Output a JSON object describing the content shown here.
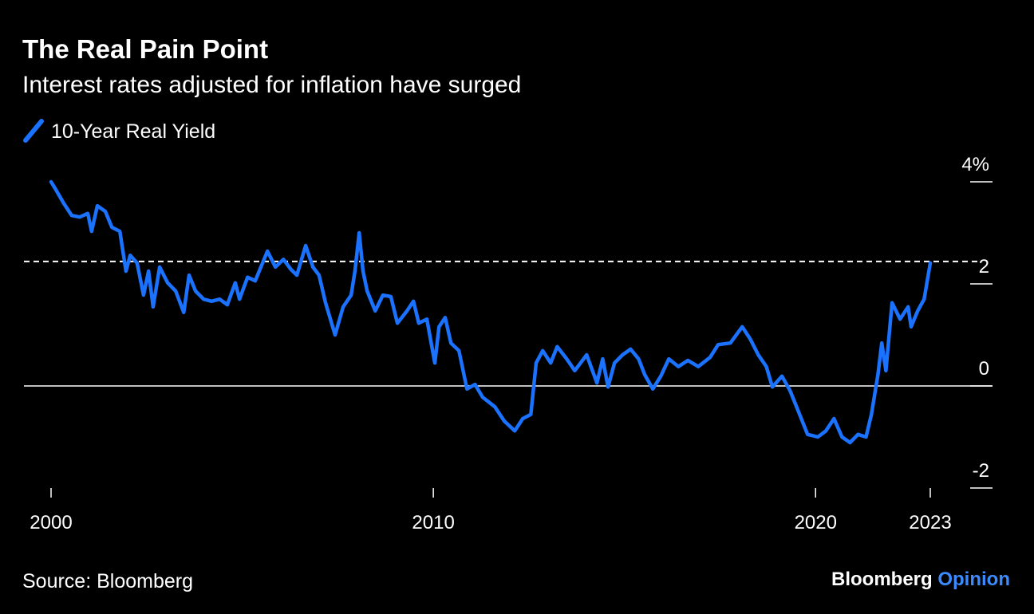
{
  "chart_data": {
    "type": "line",
    "title": "The Real Pain Point",
    "subtitle": "Interest rates adjusted for inflation have surged",
    "source": "Source: Bloomberg",
    "brand": "Bloomberg",
    "brand_section": "Opinion",
    "reference_line": 2.44,
    "xlim": [
      2000,
      2023
    ],
    "xticks": [
      2000,
      2010,
      2020,
      2023
    ],
    "ylim": [
      -2,
      4
    ],
    "yticks": [
      -2,
      0,
      2,
      {
        "value": 4,
        "label": "4%"
      }
    ],
    "series": [
      {
        "name": "10-Year Real Yield",
        "color": "#1a72ff",
        "x": [
          2000.0,
          2000.13,
          2000.33,
          2000.54,
          2000.75,
          2000.96,
          2001.06,
          2001.21,
          2001.42,
          2001.59,
          2001.8,
          2001.96,
          2002.07,
          2002.25,
          2002.42,
          2002.55,
          2002.67,
          2002.84,
          2003.05,
          2003.26,
          2003.47,
          2003.61,
          2003.78,
          2003.99,
          2004.2,
          2004.41,
          2004.61,
          2004.82,
          2004.93,
          2005.14,
          2005.34,
          2005.66,
          2005.87,
          2006.08,
          2006.28,
          2006.43,
          2006.66,
          2006.85,
          2007.01,
          2007.18,
          2007.43,
          2007.64,
          2007.85,
          2007.95,
          2008.06,
          2008.16,
          2008.27,
          2008.48,
          2008.68,
          2008.89,
          2009.06,
          2009.31,
          2009.48,
          2009.62,
          2009.83,
          2010.04,
          2010.15,
          2010.31,
          2010.46,
          2010.67,
          2010.88,
          2011.09,
          2011.29,
          2011.61,
          2011.86,
          2012.13,
          2012.34,
          2012.55,
          2012.69,
          2012.86,
          2013.07,
          2013.24,
          2013.49,
          2013.7,
          2014.01,
          2014.28,
          2014.43,
          2014.57,
          2014.74,
          2014.95,
          2015.16,
          2015.37,
          2015.53,
          2015.74,
          2015.95,
          2016.16,
          2016.41,
          2016.66,
          2016.93,
          2017.24,
          2017.45,
          2017.77,
          2018.08,
          2018.29,
          2018.5,
          2018.71,
          2018.87,
          2019.12,
          2019.33,
          2019.54,
          2019.79,
          2020.06,
          2020.27,
          2020.48,
          2020.69,
          2020.9,
          2021.11,
          2021.32,
          2021.46,
          2021.63,
          2021.73,
          2021.84,
          2022.0,
          2022.21,
          2022.42,
          2022.5,
          2022.67,
          2022.84,
          2023.0
        ],
        "values": [
          4.0,
          3.84,
          3.58,
          3.34,
          3.31,
          3.38,
          3.03,
          3.53,
          3.42,
          3.11,
          3.03,
          2.25,
          2.56,
          2.41,
          1.78,
          2.25,
          1.55,
          2.33,
          2.02,
          1.86,
          1.44,
          2.17,
          1.86,
          1.7,
          1.66,
          1.7,
          1.59,
          2.02,
          1.7,
          2.13,
          2.06,
          2.64,
          2.33,
          2.48,
          2.28,
          2.17,
          2.75,
          2.33,
          2.17,
          1.63,
          1.0,
          1.55,
          1.78,
          2.25,
          3.0,
          2.25,
          1.86,
          1.47,
          1.78,
          1.75,
          1.23,
          1.47,
          1.66,
          1.23,
          1.31,
          0.45,
          1.16,
          1.34,
          0.84,
          0.69,
          -0.06,
          0.03,
          -0.22,
          -0.41,
          -0.69,
          -0.88,
          -0.64,
          -0.56,
          0.45,
          0.69,
          0.45,
          0.77,
          0.53,
          0.3,
          0.61,
          0.06,
          0.53,
          -0.02,
          0.45,
          0.61,
          0.72,
          0.53,
          0.22,
          -0.06,
          0.19,
          0.53,
          0.38,
          0.5,
          0.38,
          0.56,
          0.81,
          0.84,
          1.16,
          0.92,
          0.61,
          0.38,
          -0.02,
          0.19,
          -0.09,
          -0.48,
          -0.95,
          -1.0,
          -0.88,
          -0.64,
          -1.0,
          -1.11,
          -0.95,
          -1.0,
          -0.56,
          0.22,
          0.84,
          0.3,
          1.63,
          1.31,
          1.55,
          1.16,
          1.47,
          1.7,
          2.41
        ]
      }
    ]
  }
}
